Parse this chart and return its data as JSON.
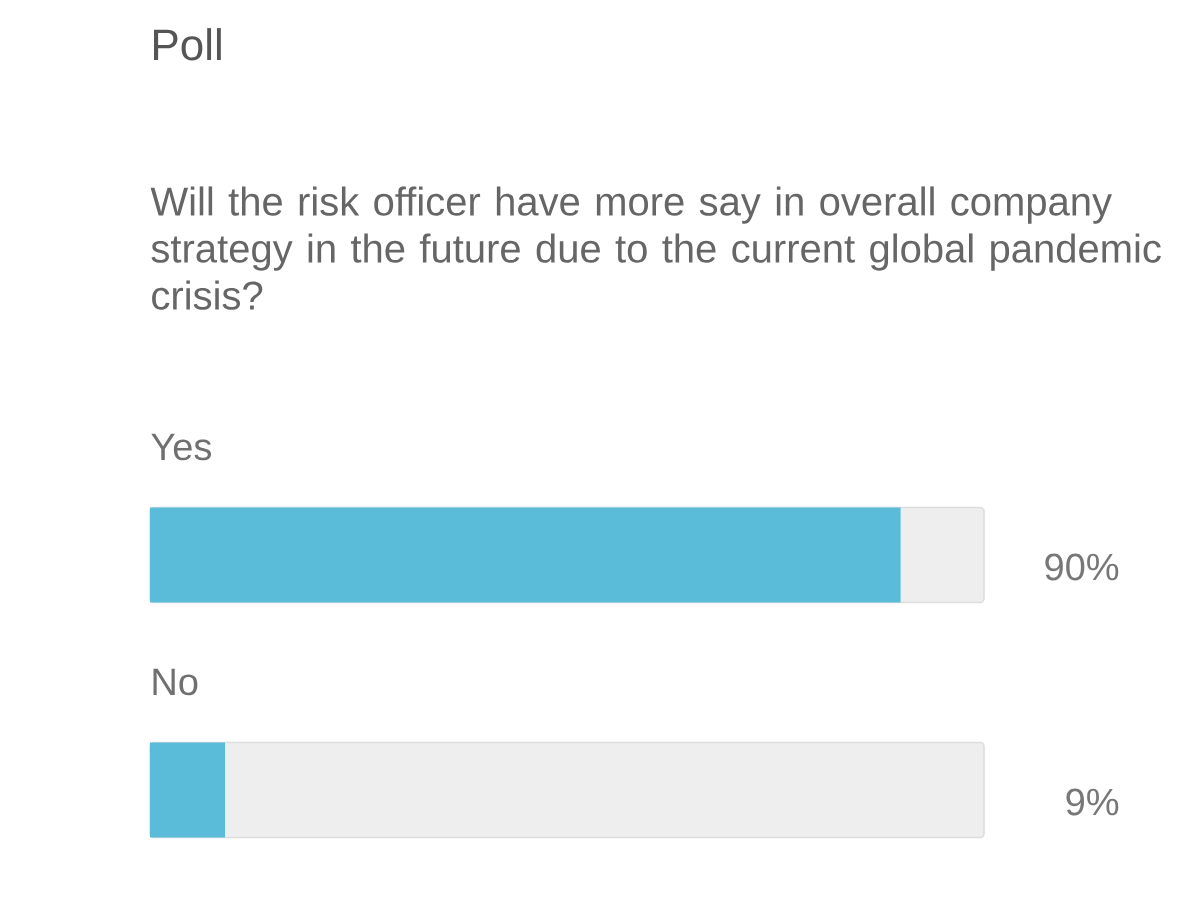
{
  "chart_data": {
    "type": "bar",
    "orientation": "horizontal",
    "title": "Poll",
    "subtitle": "Will the risk officer have more say in overall company strategy in the future due to the current global pandemic crisis?",
    "categories": [
      "Yes",
      "No"
    ],
    "values": [
      90,
      9
    ],
    "value_labels": [
      "90%",
      "9%"
    ],
    "color": "#5bbcd9",
    "xlim": [
      0,
      100
    ],
    "tick_labels": false
  }
}
